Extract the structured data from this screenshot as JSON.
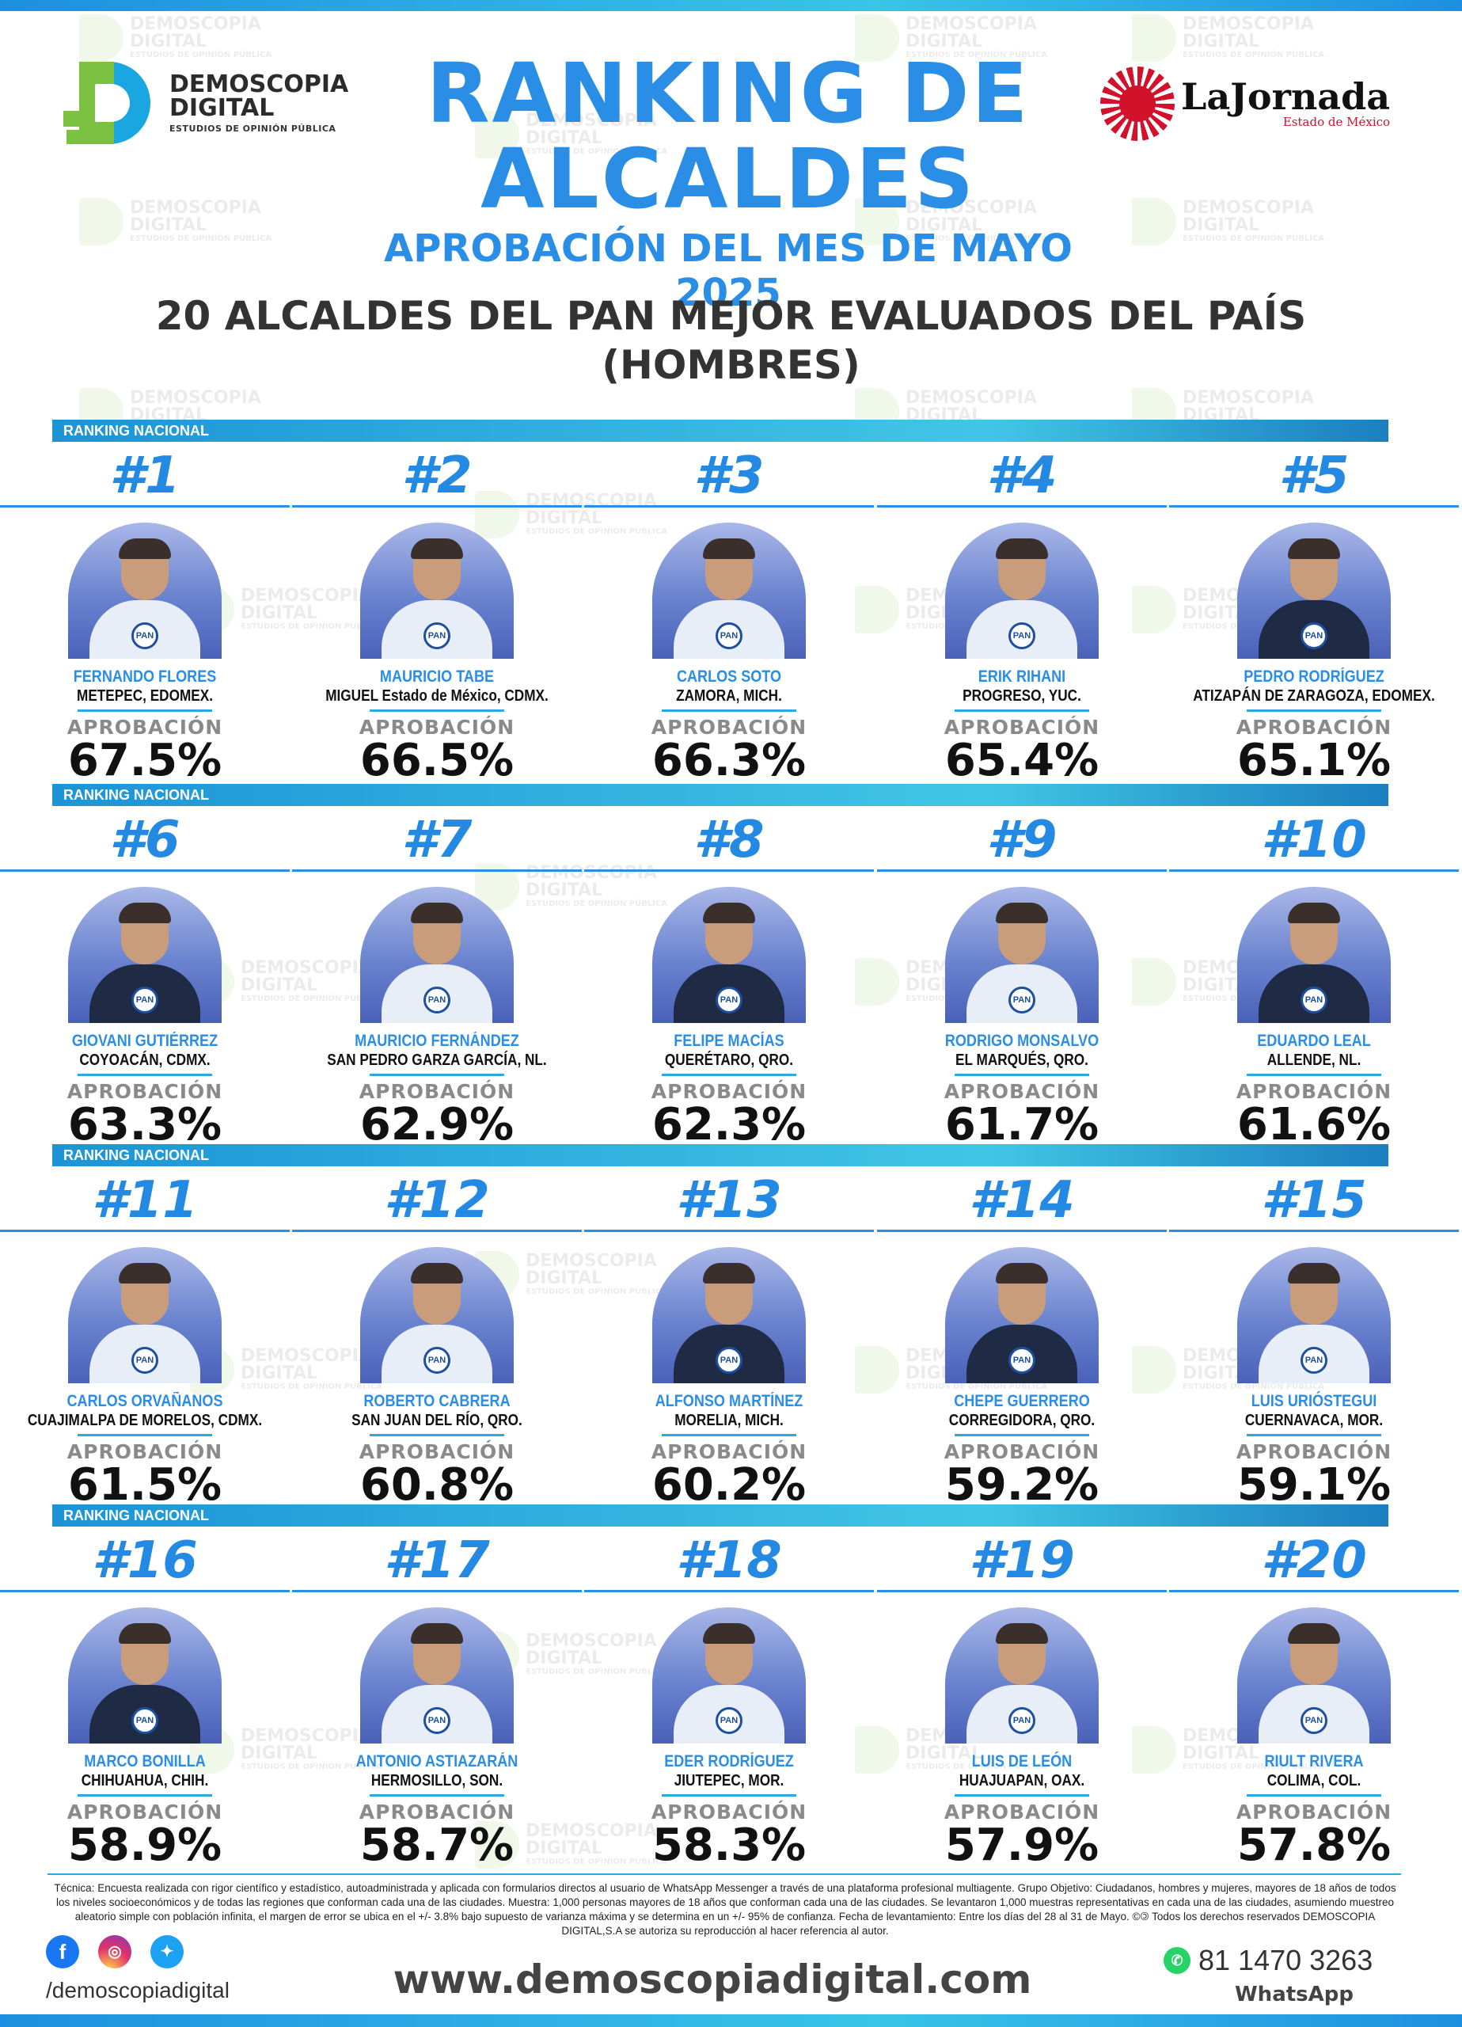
{
  "header": {
    "brand_name_line1": "DEMOSCOPIA",
    "brand_name_line2": "DIGITAL",
    "brand_tagline": "ESTUDIOS DE OPINIÓN PÚBLICA",
    "partner_name": "LaJornada",
    "partner_sub": "Estado de México",
    "title_line1": "RANKING DE",
    "title_line2": "ALCALDES",
    "subtitle": "APROBACIÓN DEL MES DE MAYO 2025",
    "heading_line1": "20 ALCALDES DEL PAN MEJOR EVALUADOS DEL PAÍS",
    "heading_line2": "(HOMBRES)"
  },
  "section_label": "RANKING NACIONAL",
  "approval_label": "APROBACIÓN",
  "badge_text": "PAN",
  "colors": {
    "accent": "#2b8ee6",
    "band": "#2ba7e2",
    "text": "#111111"
  },
  "chart_data": {
    "type": "bar",
    "title": "RANKING DE ALCALDES",
    "categories": [
      "FERNANDO FLORES",
      "MAURICIO TABE",
      "CARLOS SOTO",
      "ERIK RIHANI",
      "PEDRO RODRÍGUEZ",
      "GIOVANI GUTIÉRREZ",
      "MAURICIO FERNÁNDEZ",
      "FELIPE MACÍAS",
      "RODRIGO MONSALVO",
      "EDUARDO LEAL",
      "CARLOS ORVAÑANOS",
      "ROBERTO CABRERA",
      "ALFONSO MARTÍNEZ",
      "CHEPE GUERRERO",
      "LUIS URIÓSTEGUI",
      "MARCO BONILLA",
      "ANTONIO ASTIAZARÁN",
      "EDER RODRÍGUEZ",
      "LUIS DE LEÓN",
      "RIULT RIVERA"
    ],
    "values": [
      67.5,
      66.5,
      66.3,
      65.4,
      65.1,
      63.3,
      62.9,
      62.3,
      61.7,
      61.6,
      61.5,
      60.8,
      60.2,
      59.2,
      59.1,
      58.9,
      58.7,
      58.3,
      57.9,
      57.8
    ],
    "unit": "%"
  },
  "mayors": [
    {
      "rank": "#1",
      "name": "FERNANDO FLORES",
      "place": "METEPEC, EDOMEX.",
      "value": "67.5%",
      "suit": "light"
    },
    {
      "rank": "#2",
      "name": "MAURICIO TABE",
      "place": "MIGUEL Estado de México, CDMX.",
      "value": "66.5%",
      "suit": "light"
    },
    {
      "rank": "#3",
      "name": "CARLOS SOTO",
      "place": "ZAMORA, MICH.",
      "value": "66.3%",
      "suit": "light"
    },
    {
      "rank": "#4",
      "name": "ERIK RIHANI",
      "place": "PROGRESO, YUC.",
      "value": "65.4%",
      "suit": "light"
    },
    {
      "rank": "#5",
      "name": "PEDRO RODRÍGUEZ",
      "place": "ATIZAPÁN DE ZARAGOZA, EDOMEX.",
      "value": "65.1%",
      "suit": "dark"
    },
    {
      "rank": "#6",
      "name": "GIOVANI GUTIÉRREZ",
      "place": "COYOACÁN, CDMX.",
      "value": "63.3%",
      "suit": "dark"
    },
    {
      "rank": "#7",
      "name": "MAURICIO FERNÁNDEZ",
      "place": "SAN PEDRO GARZA GARCÍA, NL.",
      "value": "62.9%",
      "suit": "light"
    },
    {
      "rank": "#8",
      "name": "FELIPE MACÍAS",
      "place": "QUERÉTARO, QRO.",
      "value": "62.3%",
      "suit": "dark"
    },
    {
      "rank": "#9",
      "name": "RODRIGO MONSALVO",
      "place": "EL MARQUÉS, QRO.",
      "value": "61.7%",
      "suit": "light"
    },
    {
      "rank": "#10",
      "name": "EDUARDO LEAL",
      "place": "ALLENDE, NL.",
      "value": "61.6%",
      "suit": "dark"
    },
    {
      "rank": "#11",
      "name": "CARLOS ORVAÑANOS",
      "place": "CUAJIMALPA DE MORELOS, CDMX.",
      "value": "61.5%",
      "suit": "light"
    },
    {
      "rank": "#12",
      "name": "ROBERTO CABRERA",
      "place": "SAN JUAN DEL RÍO, QRO.",
      "value": "60.8%",
      "suit": "light"
    },
    {
      "rank": "#13",
      "name": "ALFONSO MARTÍNEZ",
      "place": "MORELIA, MICH.",
      "value": "60.2%",
      "suit": "dark"
    },
    {
      "rank": "#14",
      "name": "CHEPE GUERRERO",
      "place": "CORREGIDORA, QRO.",
      "value": "59.2%",
      "suit": "dark"
    },
    {
      "rank": "#15",
      "name": "LUIS URIÓSTEGUI",
      "place": "CUERNAVACA, MOR.",
      "value": "59.1%",
      "suit": "light"
    },
    {
      "rank": "#16",
      "name": "MARCO BONILLA",
      "place": "CHIHUAHUA, CHIH.",
      "value": "58.9%",
      "suit": "dark"
    },
    {
      "rank": "#17",
      "name": "ANTONIO ASTIAZARÁN",
      "place": "HERMOSILLO, SON.",
      "value": "58.7%",
      "suit": "light"
    },
    {
      "rank": "#18",
      "name": "EDER RODRÍGUEZ",
      "place": "JIUTEPEC, MOR.",
      "value": "58.3%",
      "suit": "light"
    },
    {
      "rank": "#19",
      "name": "LUIS DE LEÓN",
      "place": "HUAJUAPAN, OAX.",
      "value": "57.9%",
      "suit": "light"
    },
    {
      "rank": "#20",
      "name": "RIULT RIVERA",
      "place": "COLIMA, COL.",
      "value": "57.8%",
      "suit": "light"
    }
  ],
  "footer": {
    "tecnica": "Técnica: Encuesta realizada con rigor científico y estadístico, autoadministrada y aplicada con formularios directos al usuario de WhatsApp Messenger a través de una plataforma profesional multiagente. Grupo Objetivo: Ciudadanos, hombres y mujeres, mayores de 18 años de todos los niveles socioeconómicos y de todas las regiones que conforman cada una de las ciudades. Muestra: 1,000 personas mayores de 18 años que conforman cada una de las ciudades. Se levantaron 1,000 muestras representativas en cada una de las ciudades, asumiendo muestreo aleatorio simple con población infinita, el margen de error se ubica en el +/- 3.8% bajo supuesto de varianza máxima y se determina en un +/- 95% de confianza. Fecha de levantamiento: Entre los días del 28 al 31 de Mayo. ©🄯 Todos los derechos reservados DEMOSCOPIA DIGITAL,S.A se autoriza su reproducción al hacer referencia al autor.",
    "handle": "/demoscopiadigital",
    "website": "www.demoscopiadigital.com",
    "whatsapp_number": "81 1470 3263",
    "whatsapp_label": "WhatsApp"
  }
}
